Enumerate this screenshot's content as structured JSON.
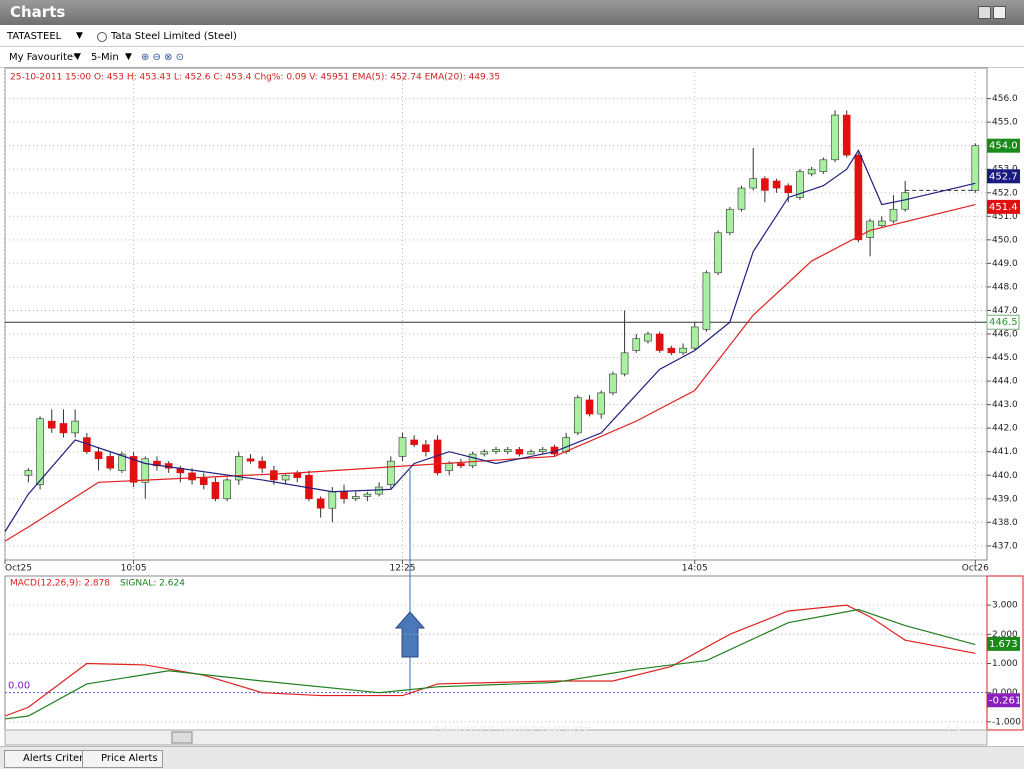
{
  "window": {
    "title": "Charts"
  },
  "toolbar": {
    "symbol": "TATASTEEL",
    "company": "Tata Steel Limited (Steel)",
    "watchlist": "My Favourite*",
    "interval": "5-Min"
  },
  "chart_data": [
    {
      "type": "candlestick",
      "info": "25-10-2011 15:00  O: 453  H: 453.43  L: 452.6  C: 453.4  Chg%: 0.09  V: 45951  EMA(5):  452.74  EMA(20):  449.35",
      "xlim": [
        -2,
        82
      ],
      "ylim": [
        436.4,
        457.3
      ],
      "grid": true,
      "xticks": [
        {
          "value": -2,
          "label": "Oct25"
        },
        {
          "value": 9,
          "label": "10:05"
        },
        {
          "value": 32,
          "label": "12:25"
        },
        {
          "value": 57,
          "label": "14:05"
        },
        {
          "value": 81,
          "label": "Oct26"
        }
      ],
      "yticks": [
        {
          "value": 437,
          "label": "437.0"
        },
        {
          "value": 438,
          "label": "438.0"
        },
        {
          "value": 439,
          "label": "439.0"
        },
        {
          "value": 440,
          "label": "440.0"
        },
        {
          "value": 441,
          "label": "441.0"
        },
        {
          "value": 442,
          "label": "442.0"
        },
        {
          "value": 443,
          "label": "443.0"
        },
        {
          "value": 444,
          "label": "444.0"
        },
        {
          "value": 445,
          "label": "445.0"
        },
        {
          "value": 446,
          "label": "446.0"
        },
        {
          "value": 447,
          "label": "447.0"
        },
        {
          "value": 448,
          "label": "448.0"
        },
        {
          "value": 449,
          "label": "449.0"
        },
        {
          "value": 450,
          "label": "450.0"
        },
        {
          "value": 451,
          "label": "451.0"
        },
        {
          "value": 452,
          "label": "452.0"
        },
        {
          "value": 453,
          "label": "453.0"
        },
        {
          "value": 454,
          "label": "454.0"
        },
        {
          "value": 455,
          "label": "455.0"
        },
        {
          "value": 456,
          "label": "456.0"
        }
      ],
      "up_color": "#a8f0a0",
      "down_color": "#e01010",
      "x": [
        0,
        1,
        2,
        3,
        4,
        5,
        6,
        7,
        8,
        9,
        10,
        11,
        12,
        13,
        14,
        15,
        16,
        17,
        18,
        19,
        20,
        21,
        22,
        23,
        24,
        25,
        26,
        27,
        28,
        29,
        30,
        31,
        32,
        33,
        34,
        35,
        36,
        37,
        38,
        39,
        40,
        41,
        42,
        43,
        44,
        45,
        46,
        47,
        48,
        49,
        50,
        51,
        52,
        53,
        54,
        55,
        56,
        57,
        58,
        59,
        60,
        61,
        62,
        63,
        64,
        65,
        66,
        67,
        68,
        69,
        70,
        71,
        72,
        73,
        74,
        75,
        81
      ],
      "ohlc": [
        [
          440.0,
          440.3,
          439.7,
          440.2
        ],
        [
          439.6,
          442.5,
          439.4,
          442.4
        ],
        [
          442.3,
          442.8,
          441.8,
          442.0
        ],
        [
          442.2,
          442.8,
          441.6,
          441.8
        ],
        [
          441.8,
          442.8,
          441.6,
          442.3
        ],
        [
          441.6,
          441.8,
          440.9,
          441.0
        ],
        [
          441.0,
          441.2,
          440.2,
          440.7
        ],
        [
          440.8,
          441.0,
          440.2,
          440.3
        ],
        [
          440.2,
          441.0,
          440.1,
          440.9
        ],
        [
          440.8,
          441.0,
          439.5,
          439.7
        ],
        [
          439.7,
          440.8,
          439.0,
          440.7
        ],
        [
          440.6,
          440.8,
          440.2,
          440.4
        ],
        [
          440.5,
          440.6,
          440.1,
          440.3
        ],
        [
          440.3,
          440.4,
          439.7,
          440.1
        ],
        [
          440.1,
          440.3,
          439.6,
          439.8
        ],
        [
          439.9,
          440.1,
          439.4,
          439.6
        ],
        [
          439.7,
          439.9,
          438.9,
          439.0
        ],
        [
          439.0,
          439.9,
          438.9,
          439.8
        ],
        [
          439.8,
          441.0,
          439.6,
          440.8
        ],
        [
          440.7,
          440.9,
          440.5,
          440.6
        ],
        [
          440.6,
          440.8,
          440.1,
          440.3
        ],
        [
          440.2,
          440.4,
          439.6,
          439.8
        ],
        [
          439.8,
          440.1,
          439.6,
          440.0
        ],
        [
          440.1,
          440.2,
          439.7,
          439.9
        ],
        [
          440.0,
          440.2,
          438.9,
          439.0
        ],
        [
          439.0,
          439.1,
          438.2,
          438.6
        ],
        [
          438.6,
          439.5,
          438.0,
          439.3
        ],
        [
          439.3,
          439.6,
          438.8,
          439.0
        ],
        [
          439.0,
          439.3,
          438.9,
          439.1
        ],
        [
          439.1,
          439.3,
          438.9,
          439.2
        ],
        [
          439.2,
          439.7,
          439.1,
          439.5
        ],
        [
          439.6,
          440.8,
          439.4,
          440.6
        ],
        [
          440.8,
          441.8,
          440.6,
          441.6
        ],
        [
          441.5,
          441.7,
          441.2,
          441.3
        ],
        [
          441.3,
          441.5,
          440.8,
          441.0
        ],
        [
          441.5,
          441.7,
          440.0,
          440.1
        ],
        [
          440.2,
          440.6,
          440.0,
          440.5
        ],
        [
          440.5,
          440.7,
          440.3,
          440.4
        ],
        [
          440.4,
          441.0,
          440.3,
          440.9
        ],
        [
          440.9,
          441.1,
          440.8,
          441.0
        ],
        [
          441.0,
          441.2,
          440.9,
          441.1
        ],
        [
          441.0,
          441.2,
          440.9,
          441.1
        ],
        [
          441.1,
          441.2,
          440.8,
          440.9
        ],
        [
          440.9,
          441.1,
          440.9,
          441.0
        ],
        [
          441.0,
          441.2,
          440.9,
          441.1
        ],
        [
          441.2,
          441.3,
          440.8,
          440.9
        ],
        [
          441.0,
          441.8,
          440.9,
          441.6
        ],
        [
          441.8,
          443.4,
          441.7,
          443.3
        ],
        [
          443.2,
          443.4,
          442.5,
          442.6
        ],
        [
          442.6,
          443.6,
          442.4,
          443.5
        ],
        [
          443.5,
          444.4,
          443.4,
          444.3
        ],
        [
          444.3,
          447.0,
          444.2,
          445.2
        ],
        [
          445.3,
          446.0,
          445.2,
          445.8
        ],
        [
          445.7,
          446.1,
          445.6,
          446.0
        ],
        [
          446.0,
          446.1,
          445.2,
          445.3
        ],
        [
          445.4,
          445.5,
          445.1,
          445.2
        ],
        [
          445.2,
          445.6,
          445.1,
          445.4
        ],
        [
          445.4,
          446.5,
          445.3,
          446.3
        ],
        [
          446.2,
          448.7,
          446.1,
          448.6
        ],
        [
          448.6,
          450.4,
          448.5,
          450.3
        ],
        [
          450.3,
          451.4,
          450.2,
          451.3
        ],
        [
          451.3,
          452.3,
          451.2,
          452.2
        ],
        [
          452.2,
          453.9,
          452.1,
          452.6
        ],
        [
          452.6,
          452.7,
          451.6,
          452.1
        ],
        [
          452.5,
          452.6,
          452.0,
          452.2
        ],
        [
          452.3,
          452.4,
          451.6,
          452.0
        ],
        [
          451.8,
          453.0,
          451.7,
          452.9
        ],
        [
          452.8,
          453.1,
          452.7,
          453.0
        ],
        [
          452.9,
          453.5,
          452.8,
          453.4
        ],
        [
          453.4,
          455.5,
          453.3,
          455.3
        ],
        [
          455.3,
          455.5,
          453.5,
          453.6
        ],
        [
          453.6,
          453.7,
          449.9,
          450.0
        ],
        [
          450.1,
          450.9,
          449.3,
          450.8
        ],
        [
          450.6,
          451.0,
          450.5,
          450.8
        ],
        [
          450.8,
          451.9,
          450.7,
          451.3
        ],
        [
          451.3,
          452.5,
          451.2,
          452.0
        ],
        [
          452.1,
          454.1,
          452.0,
          454.0
        ]
      ],
      "series": [
        {
          "color": "#e02020",
          "x": [
            -2,
            0,
            6,
            23,
            45,
            52,
            57,
            62,
            67,
            72,
            81
          ],
          "values": [
            437.2,
            437.8,
            439.7,
            440.1,
            440.8,
            442.3,
            443.6,
            446.8,
            449.1,
            450.4,
            451.5
          ]
        },
        {
          "color": "#202080",
          "x": [
            -2,
            0,
            4,
            10,
            20,
            26,
            31,
            33,
            36,
            40,
            45,
            49,
            54,
            57,
            60,
            62,
            65,
            68,
            70,
            71,
            73,
            75,
            81
          ],
          "values": [
            437.6,
            439.2,
            441.5,
            440.5,
            439.8,
            439.3,
            439.4,
            440.5,
            441.0,
            440.5,
            441.0,
            441.8,
            444.5,
            445.3,
            446.5,
            449.5,
            451.8,
            452.3,
            453.0,
            453.8,
            451.5,
            451.7,
            452.4
          ]
        }
      ],
      "hline": {
        "value": 446.5,
        "label": "446.5"
      },
      "price_tags": [
        {
          "value": 454.0,
          "label": "454.0",
          "color": "#1a8a1a"
        },
        {
          "value": 452.7,
          "label": "452.7",
          "color": "#1a1a80"
        },
        {
          "value": 451.4,
          "label": "451.4",
          "color": "#e01010"
        }
      ]
    },
    {
      "type": "line",
      "xlim": [
        -2,
        82
      ],
      "ylim": [
        -1.28,
        4.0
      ],
      "grid": true,
      "yticks": [
        {
          "value": 3,
          "label": "3.000"
        },
        {
          "value": 2,
          "label": "2.000"
        },
        {
          "value": 1,
          "label": "1.000"
        },
        {
          "value": 0,
          "label": "0.000"
        },
        {
          "value": -1,
          "label": "-1.000"
        }
      ],
      "zero_label": {
        "value": 0,
        "label": "0.00"
      },
      "series": [
        {
          "name": "MACD(12,26,9):  2.878",
          "color": "#e02020",
          "x": [
            -2,
            0,
            5,
            10,
            15,
            20,
            25,
            32,
            35,
            45,
            50,
            55,
            60,
            65,
            70,
            72,
            75,
            81
          ],
          "values": [
            -0.8,
            -0.5,
            1.0,
            0.95,
            0.6,
            0.0,
            -0.1,
            -0.1,
            0.3,
            0.4,
            0.4,
            0.9,
            2.0,
            2.8,
            3.0,
            2.6,
            1.8,
            1.35
          ]
        },
        {
          "name": "SIGNAL:  2.624",
          "color": "#208020",
          "x": [
            -2,
            0,
            5,
            12,
            20,
            30,
            35,
            45,
            52,
            58,
            65,
            71,
            75,
            81
          ],
          "values": [
            -0.9,
            -0.8,
            0.3,
            0.75,
            0.4,
            0.0,
            0.2,
            0.35,
            0.8,
            1.1,
            2.4,
            2.85,
            2.3,
            1.65
          ]
        }
      ],
      "price_tags": [
        {
          "value": 1.673,
          "label": "1.673",
          "color": "#1a8a1a"
        },
        {
          "value": -0.261,
          "label": "-0.261",
          "color": "#8a20c0"
        }
      ]
    }
  ],
  "tabs": [
    "Alerts Criteria",
    "Price Alerts"
  ],
  "watermark": "FINAFREE INVESTMENTS",
  "page_number": "13"
}
